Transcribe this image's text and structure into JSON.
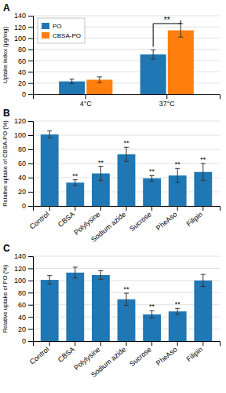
{
  "chart_data": [
    {
      "type": "bar",
      "title": "A",
      "categories": [
        "4°C",
        "37°C"
      ],
      "series": [
        {
          "name": "PO",
          "values": [
            23,
            71
          ],
          "errors": [
            4,
            8
          ]
        },
        {
          "name": "CBSA-PO",
          "values": [
            26,
            114
          ],
          "errors": [
            5,
            12
          ]
        }
      ],
      "ylabel": "Uptake index (μg/mg)",
      "ylim": [
        0,
        140
      ],
      "yticks": [
        0,
        20,
        40,
        60,
        80,
        100,
        120,
        140
      ],
      "grid": true,
      "legend": "upper left",
      "annotations": [
        {
          "text": "**",
          "x": "37°C",
          "y": 126
        }
      ]
    },
    {
      "type": "bar",
      "title": "B",
      "categories": [
        "Control",
        "CBSA",
        "Polylysine",
        "Sodium azide",
        "Sucrose",
        "PheAso",
        "Filipin"
      ],
      "values": [
        101,
        33,
        46,
        73,
        39,
        43,
        48
      ],
      "errors": [
        5,
        4,
        10,
        10,
        4,
        10,
        12
      ],
      "ylabel": "Relative uptake of CBSA-PO (%)",
      "ylim": [
        0,
        120
      ],
      "yticks": [
        0,
        20,
        40,
        60,
        80,
        100,
        120
      ],
      "grid": true,
      "annotations": [
        {
          "text": "**",
          "x": "CBSA"
        },
        {
          "text": "**",
          "x": "Polylysine"
        },
        {
          "text": "**",
          "x": "Sodium azide"
        },
        {
          "text": "**",
          "x": "Sucrose"
        },
        {
          "text": "**",
          "x": "PheAso"
        },
        {
          "text": "**",
          "x": "Filipin"
        }
      ]
    },
    {
      "type": "bar",
      "title": "C",
      "categories": [
        "Control",
        "CBSA",
        "Polylysine",
        "Sodium azide",
        "Sucrose",
        "PheAso",
        "Filipin"
      ],
      "values": [
        101,
        113,
        109,
        69,
        44,
        49,
        100
      ],
      "errors": [
        7,
        9,
        7,
        10,
        6,
        5,
        10
      ],
      "ylabel": "Relative uptake of PO (%)",
      "ylim": [
        0,
        140
      ],
      "yticks": [
        0,
        20,
        40,
        60,
        80,
        100,
        120,
        140
      ],
      "grid": true,
      "annotations": [
        {
          "text": "**",
          "x": "Sodium azide"
        },
        {
          "text": "**",
          "x": "Sucrose"
        },
        {
          "text": "**",
          "x": "PheAso"
        }
      ]
    }
  ]
}
